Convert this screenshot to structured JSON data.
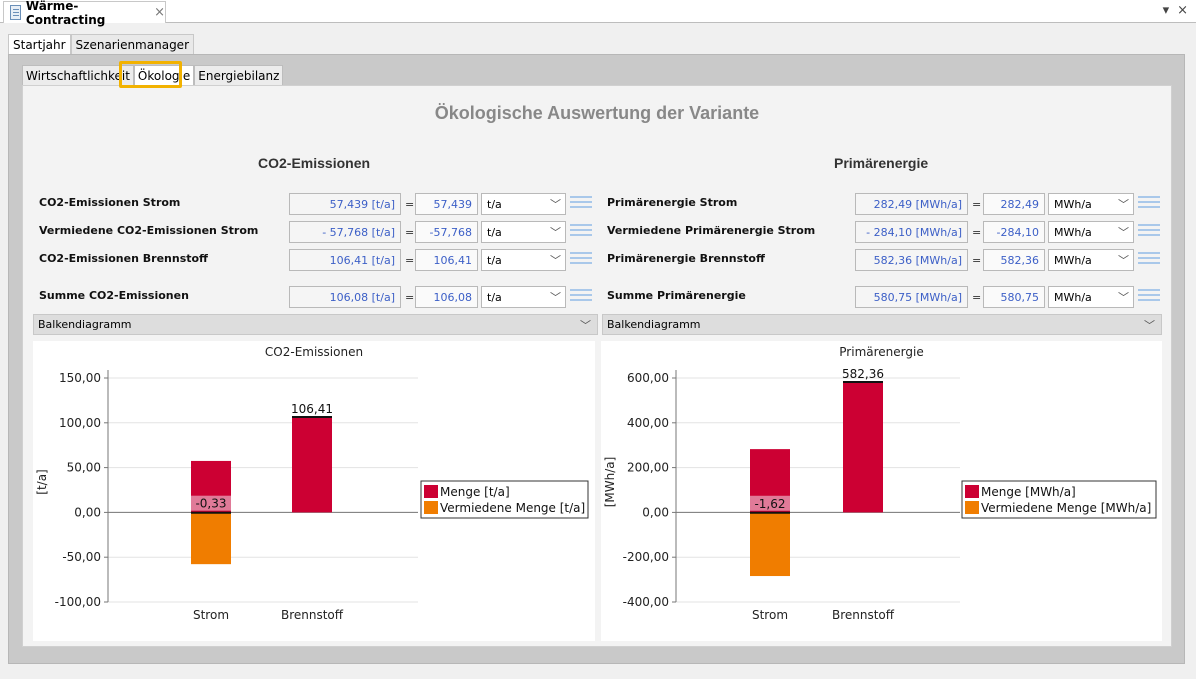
{
  "document_tab": {
    "title": "Wärme-Contracting",
    "close": "×"
  },
  "window_controls": {
    "menu": "▾",
    "close": "×"
  },
  "outer_tabs": [
    {
      "label": "Startjahr"
    },
    {
      "label": "Szenarienmanager"
    }
  ],
  "inner_tabs": [
    {
      "label": "Wirtschaftlichkeit"
    },
    {
      "label": "Ökologie"
    },
    {
      "label": "Energiebilanz"
    }
  ],
  "main_title": "Ökologische Auswertung der Variante",
  "co2": {
    "title": "CO2-Emissionen",
    "rows": [
      {
        "label": "CO2-Emissionen Strom",
        "display": "57,439 [t/a]",
        "value": "57,439",
        "unit": "t/a"
      },
      {
        "label": "Vermiedene CO2-Emissionen Strom",
        "display": "- 57,768 [t/a]",
        "value": "-57,768",
        "unit": "t/a"
      },
      {
        "label": "CO2-Emissionen Brennstoff",
        "display": "106,41 [t/a]",
        "value": "106,41",
        "unit": "t/a"
      },
      {
        "label": "Summe CO2-Emissionen",
        "display": "106,08 [t/a]",
        "value": "106,08",
        "unit": "t/a"
      }
    ],
    "chart_type": "Balkendiagramm"
  },
  "primary": {
    "title": "Primärenergie",
    "rows": [
      {
        "label": "Primärenergie Strom",
        "display": "282,49 [MWh/a]",
        "value": "282,49",
        "unit": "MWh/a"
      },
      {
        "label": "Vermiedene Primärenergie Strom",
        "display": "- 284,10 [MWh/a]",
        "value": "-284,10",
        "unit": "MWh/a"
      },
      {
        "label": "Primärenergie Brennstoff",
        "display": "582,36 [MWh/a]",
        "value": "582,36",
        "unit": "MWh/a"
      },
      {
        "label": "Summe Primärenergie",
        "display": "580,75 [MWh/a]",
        "value": "580,75",
        "unit": "MWh/a"
      }
    ],
    "chart_type": "Balkendiagramm"
  },
  "chart_data": [
    {
      "type": "bar",
      "title": "CO2-Emissionen",
      "ylabel": "[t/a]",
      "categories": [
        "Strom",
        "Brennstoff"
      ],
      "series": [
        {
          "name": "Menge [t/a]",
          "color": "#cc0033",
          "values": [
            57.439,
            106.41
          ]
        },
        {
          "name": "Vermiedene Menge [t/a]",
          "color": "#f07d00",
          "values": [
            -57.768,
            0
          ]
        }
      ],
      "totals": [
        -0.33,
        106.41
      ],
      "total_labels": [
        "-0,33",
        "106,41"
      ],
      "ylim": [
        -100,
        150
      ],
      "yticks": [
        -100,
        -50,
        0,
        50,
        100,
        150
      ],
      "ytick_labels": [
        "-100,00",
        "-50,00",
        "0,00",
        "50,00",
        "100,00",
        "150,00"
      ],
      "legend": "right"
    },
    {
      "type": "bar",
      "title": "Primärenergie",
      "ylabel": "[MWh/a]",
      "categories": [
        "Strom",
        "Brennstoff"
      ],
      "series": [
        {
          "name": "Menge [MWh/a]",
          "color": "#cc0033",
          "values": [
            282.49,
            582.36
          ]
        },
        {
          "name": "Vermiedene Menge [MWh/a]",
          "color": "#f07d00",
          "values": [
            -284.1,
            0
          ]
        }
      ],
      "totals": [
        -1.62,
        582.36
      ],
      "total_labels": [
        "-1,62",
        "582,36"
      ],
      "ylim": [
        -400,
        600
      ],
      "yticks": [
        -400,
        -200,
        0,
        200,
        400,
        600
      ],
      "ytick_labels": [
        "-400,00",
        "-200,00",
        "0,00",
        "200,00",
        "400,00",
        "600,00"
      ],
      "legend": "right"
    }
  ]
}
